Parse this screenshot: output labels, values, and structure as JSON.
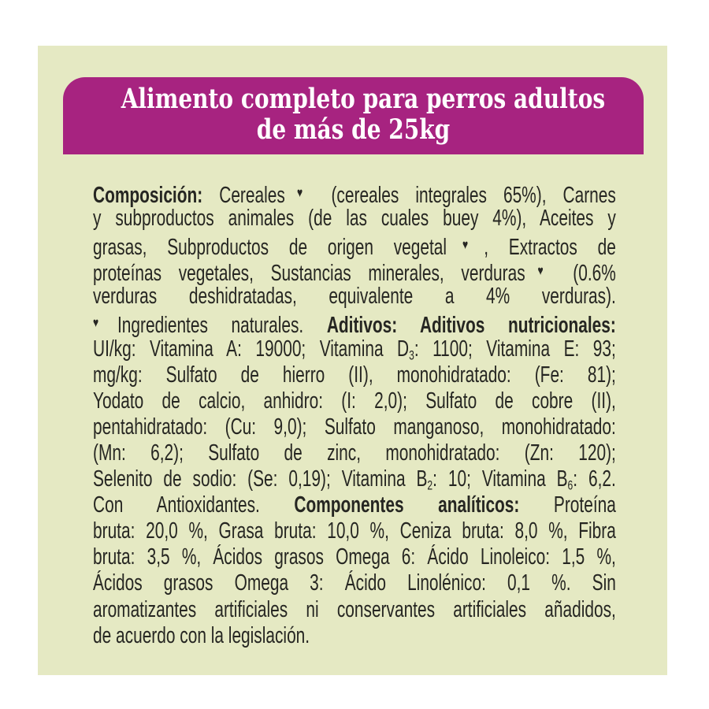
{
  "colors": {
    "page_bg": "#ffffff",
    "panel_bg": "#e5e9c3",
    "banner_bg": "#a72380",
    "banner_text_color": "#ffffff",
    "body_text_color": "#262622"
  },
  "banner": {
    "lines": [
      "Alimento completo para perros adultos",
      "de más de 25kg"
    ]
  },
  "label": {
    "lines": [
      {
        "segments": [
          {
            "text": "Composición:",
            "bold": true
          },
          {
            "text": " Cereales"
          },
          {
            "text": "♥",
            "heart": true
          },
          {
            "text": " (cereales integrales 65%), Carnes"
          }
        ]
      },
      {
        "segments": [
          {
            "text": "y subproductos animales (de las cuales buey 4%), Aceites y"
          }
        ]
      },
      {
        "segments": [
          {
            "text": "grasas, Subproductos de origen vegetal"
          },
          {
            "text": "♥",
            "heart": true
          },
          {
            "text": ", Extractos de"
          }
        ]
      },
      {
        "segments": [
          {
            "text": "proteínas vegetales, Sustancias minerales, verduras"
          },
          {
            "text": "♥",
            "heart": true
          },
          {
            "text": " (0.6%"
          }
        ]
      },
      {
        "segments": [
          {
            "text": "verduras deshidratadas, equivalente a 4% verduras)."
          }
        ]
      },
      {
        "segments": [
          {
            "text": "♥",
            "heart": true
          },
          {
            "text": "Ingredientes naturales. "
          },
          {
            "text": "Aditivos: Aditivos nutricionales:",
            "bold": true
          }
        ]
      },
      {
        "segments": [
          {
            "text": "UI/kg: Vitamina A: 19000; Vitamina D"
          },
          {
            "text": "3",
            "sub": true
          },
          {
            "text": ": 1100; Vitamina E: 93;"
          }
        ]
      },
      {
        "segments": [
          {
            "text": "mg/kg: Sulfato de hierro (II), monohidratado: (Fe: 81);"
          }
        ]
      },
      {
        "segments": [
          {
            "text": "Yodato de calcio, anhidro: (I: 2,0); Sulfato de cobre (II),"
          }
        ]
      },
      {
        "segments": [
          {
            "text": "pentahidratado: (Cu: 9,0); Sulfato manganoso, monohidratado:"
          }
        ]
      },
      {
        "segments": [
          {
            "text": "(Mn: 6,2); Sulfato de zinc, monohidratado: (Zn: 120);"
          }
        ]
      },
      {
        "segments": [
          {
            "text": "Selenito de sodio: (Se: 0,19); Vitamina B"
          },
          {
            "text": "2",
            "sub": true
          },
          {
            "text": ": 10; Vitamina B"
          },
          {
            "text": "6",
            "sub": true
          },
          {
            "text": ": 6,2."
          }
        ]
      },
      {
        "segments": [
          {
            "text": "Con Antioxidantes. "
          },
          {
            "text": "Componentes analíticos:",
            "bold": true
          },
          {
            "text": " Proteína"
          }
        ]
      },
      {
        "segments": [
          {
            "text": "bruta: 20,0 %, Grasa bruta: 10,0 %, Ceniza bruta: 8,0 %, Fibra"
          }
        ]
      },
      {
        "segments": [
          {
            "text": "bruta: 3,5 %, Ácidos grasos Omega 6: Ácido Linoleico: 1,5 %,"
          }
        ]
      },
      {
        "segments": [
          {
            "text": "Ácidos grasos Omega 3: Ácido Linolénico: 0,1 %. Sin"
          }
        ]
      },
      {
        "segments": [
          {
            "text": "aromatizantes artificiales ni conservantes artificiales añadidos,"
          }
        ]
      },
      {
        "segments": [
          {
            "text": "de acuerdo con la legislación."
          }
        ],
        "last": true
      }
    ]
  }
}
